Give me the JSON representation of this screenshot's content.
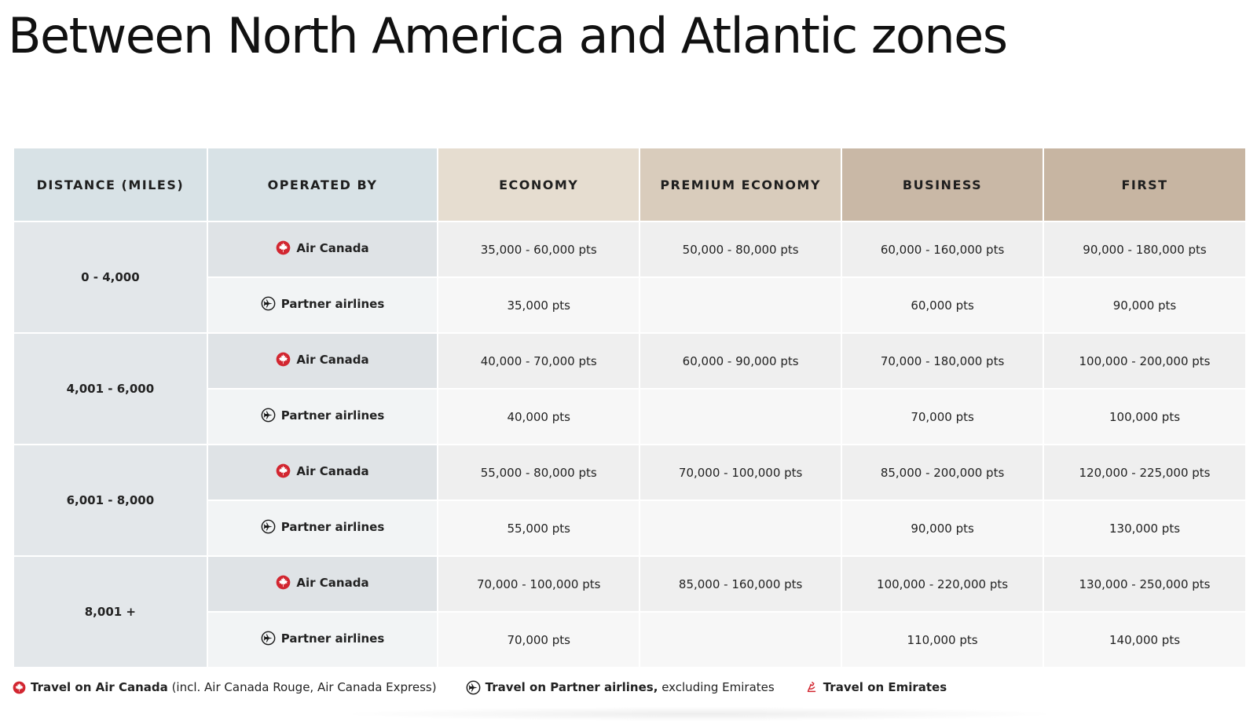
{
  "title": "Between North America and Atlantic zones",
  "headers": {
    "distance": "DISTANCE (MILES)",
    "operated_by": "OPERATED BY",
    "economy": "ECONOMY",
    "premium_economy": "PREMIUM ECONOMY",
    "business": "BUSINESS",
    "first": "FIRST"
  },
  "rows": [
    {
      "distance": "0 - 4,000",
      "air_canada": {
        "label": "Air Canada",
        "icon": "maple-leaf-icon",
        "economy": "35,000 - 60,000 pts",
        "premium_economy": "50,000 - 80,000 pts",
        "business": "60,000 - 160,000 pts",
        "first": "90,000 - 180,000 pts"
      },
      "partner": {
        "label": "Partner airlines",
        "icon": "plane-circle-icon",
        "economy": "35,000 pts",
        "premium_economy": "",
        "business": "60,000 pts",
        "first": "90,000 pts"
      }
    },
    {
      "distance": "4,001 - 6,000",
      "air_canada": {
        "label": "Air Canada",
        "icon": "maple-leaf-icon",
        "economy": "40,000 - 70,000 pts",
        "premium_economy": "60,000 - 90,000 pts",
        "business": "70,000 - 180,000 pts",
        "first": "100,000 - 200,000 pts"
      },
      "partner": {
        "label": "Partner airlines",
        "icon": "plane-circle-icon",
        "economy": "40,000 pts",
        "premium_economy": "",
        "business": "70,000 pts",
        "first": "100,000 pts"
      }
    },
    {
      "distance": "6,001 - 8,000",
      "air_canada": {
        "label": "Air Canada",
        "icon": "maple-leaf-icon",
        "economy": "55,000 - 80,000 pts",
        "premium_economy": "70,000 - 100,000 pts",
        "business": "85,000 - 200,000 pts",
        "first": "120,000 - 225,000 pts"
      },
      "partner": {
        "label": "Partner airlines",
        "icon": "plane-circle-icon",
        "economy": "55,000 pts",
        "premium_economy": "",
        "business": "90,000 pts",
        "first": "130,000 pts"
      }
    },
    {
      "distance": "8,001 +",
      "air_canada": {
        "label": "Air Canada",
        "icon": "maple-leaf-icon",
        "economy": "70,000 - 100,000 pts",
        "premium_economy": "85,000 - 160,000 pts",
        "business": "100,000 - 220,000 pts",
        "first": "130,000 - 250,000 pts"
      },
      "partner": {
        "label": "Partner airlines",
        "icon": "plane-circle-icon",
        "economy": "70,000 pts",
        "premium_economy": "",
        "business": "110,000 pts",
        "first": "140,000 pts"
      }
    }
  ],
  "legend": {
    "air_canada_bold": "Travel on Air Canada",
    "air_canada_rest": " (incl. Air Canada Rouge, Air Canada Express)",
    "partner_bold": "Travel on Partner airlines,",
    "partner_rest": " excluding Emirates",
    "emirates_bold": "Travel on Emirates"
  },
  "colors": {
    "air_canada_red": "#d22630",
    "header_distance": "#d8e2e6",
    "header_economy": "#e6ddd0",
    "header_premium": "#d9ccbc",
    "header_business": "#c9b8a6"
  }
}
